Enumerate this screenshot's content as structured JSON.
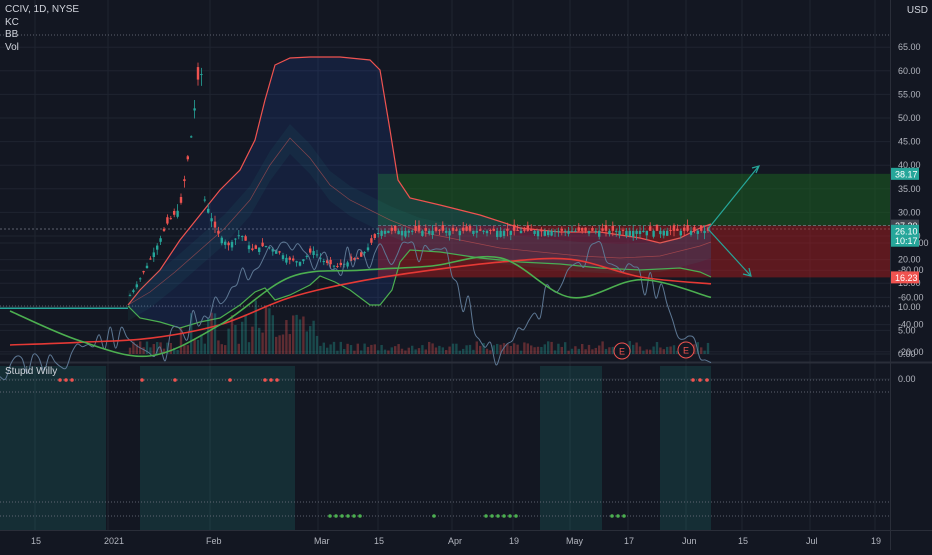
{
  "header": {
    "symbol_line": "CCIV, 1D, NYSE",
    "indicators": [
      "KC",
      "BB",
      "Vol"
    ],
    "currency": "USD"
  },
  "oscillator": {
    "title": "Stupid Willy"
  },
  "chart_data": [
    {
      "type": "candlestick",
      "title": "CCIV, 1D, NYSE",
      "ylim": [
        0,
        67
      ],
      "y_ticks": [
        "65.00",
        "60.00",
        "55.00",
        "50.00",
        "45.00",
        "40.00",
        "35.00",
        "30.00",
        "25.00",
        "20.00",
        "15.00",
        "10.00",
        "5.00",
        "0.00"
      ],
      "x_ticks": [
        "15",
        "2021",
        "Feb",
        "Mar",
        "15",
        "Apr",
        "19",
        "May",
        "17",
        "Jun",
        "15",
        "Jul",
        "19"
      ],
      "price_labels": [
        {
          "value": "38.17",
          "color": "#26a69a"
        },
        {
          "value": "27.20",
          "color": "#434651"
        },
        {
          "value": "26.10",
          "color": "#26a69a"
        },
        {
          "value": "10:17",
          "color": "#26a69a"
        },
        {
          "value": "16.23",
          "color": "#ef5350"
        }
      ],
      "earnings_markers": [
        "E",
        "E"
      ],
      "price_path_approx": [
        {
          "date": "2020-12-01",
          "close": 9.7
        },
        {
          "date": "2021-01-08",
          "close": 9.9
        },
        {
          "date": "2021-01-15",
          "close": 13.0
        },
        {
          "date": "2021-01-22",
          "close": 17.5
        },
        {
          "date": "2021-01-29",
          "close": 22.5
        },
        {
          "date": "2021-02-05",
          "close": 28.0
        },
        {
          "date": "2021-02-12",
          "close": 31.0
        },
        {
          "date": "2021-02-18",
          "close": 45.0
        },
        {
          "date": "2021-02-22",
          "close": 57.0
        },
        {
          "date": "2021-02-24",
          "close": 64.0
        },
        {
          "date": "2021-02-26",
          "close": 33.0
        },
        {
          "date": "2021-03-05",
          "close": 26.0
        },
        {
          "date": "2021-03-12",
          "close": 23.0
        },
        {
          "date": "2021-03-19",
          "close": 25.5
        },
        {
          "date": "2021-03-26",
          "close": 22.0
        },
        {
          "date": "2021-04-02",
          "close": 23.0
        },
        {
          "date": "2021-04-09",
          "close": 22.0
        },
        {
          "date": "2021-04-16",
          "close": 20.0
        },
        {
          "date": "2021-04-23",
          "close": 19.5
        },
        {
          "date": "2021-04-30",
          "close": 22.0
        },
        {
          "date": "2021-05-07",
          "close": 19.5
        },
        {
          "date": "2021-05-14",
          "close": 18.5
        },
        {
          "date": "2021-05-21",
          "close": 19.5
        },
        {
          "date": "2021-05-28",
          "close": 20.5
        },
        {
          "date": "2021-06-04",
          "close": 24.0
        },
        {
          "date": "2021-06-08",
          "close": 26.1
        }
      ],
      "position_tool": {
        "target": 38.17,
        "entry": 27.2,
        "stop": 16.23
      }
    },
    {
      "type": "line",
      "title": "Stupid Willy",
      "ylim": [
        -105,
        3
      ],
      "y_ticks": [
        "0.00",
        "-20.00",
        "-40.00",
        "-60.00",
        "-80.00",
        "-100.00"
      ],
      "series": [
        {
          "color": "#4caf50",
          "values_approx": [
            -50,
            -28,
            -17,
            -40,
            -75,
            -80,
            -83,
            -89,
            -60,
            -73,
            -60
          ]
        },
        {
          "color": "#e53935",
          "values_approx": [
            -25,
            -27,
            -30,
            -40,
            -60,
            -72,
            -80,
            -86,
            -88,
            -75,
            -70
          ]
        },
        {
          "color": "#5d7793",
          "values_approx": [
            -5,
            -15,
            -30,
            -20,
            -60,
            -100,
            -85,
            -90,
            -100,
            -15,
            -60,
            -100,
            -65,
            -3
          ]
        }
      ]
    }
  ]
}
